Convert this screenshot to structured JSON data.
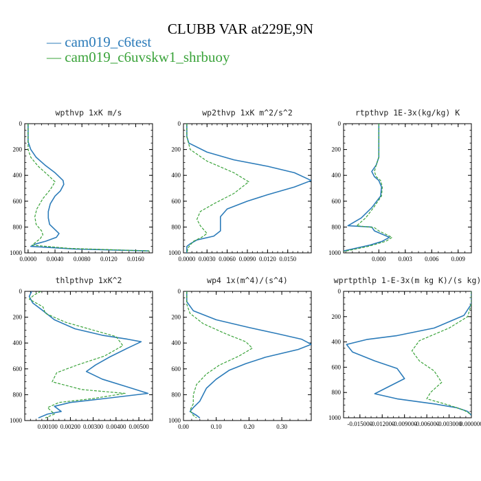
{
  "title": "CLUBB VAR at229E,9N",
  "legend": [
    {
      "label": "— cam019_c6test",
      "color": "#2b7bb9"
    },
    {
      "label": "— cam019_c6uvskw1_shrbuoy",
      "color": "#3aa33a"
    }
  ],
  "chart_data": [
    {
      "type": "line",
      "title": "wpthvp  1xK m/s",
      "ylim": [
        0,
        1000
      ],
      "y_inverted": true,
      "xlim": [
        -0.0005,
        0.0185
      ],
      "xticks": [
        "0.0000",
        "0.0040",
        "0.0080",
        "0.0120",
        "0.0160"
      ],
      "yticks": [
        "0",
        "200",
        "400",
        "600",
        "800",
        "1000"
      ],
      "series": [
        {
          "color": "#2b7bb9",
          "dash": false,
          "points": [
            [
              0.0,
              0
            ],
            [
              0.0,
              100
            ],
            [
              0.0,
              140
            ],
            [
              0.0004,
              200
            ],
            [
              0.0012,
              260
            ],
            [
              0.0025,
              320
            ],
            [
              0.004,
              380
            ],
            [
              0.0052,
              440
            ],
            [
              0.0053,
              470
            ],
            [
              0.0048,
              520
            ],
            [
              0.004,
              560
            ],
            [
              0.0033,
              620
            ],
            [
              0.003,
              680
            ],
            [
              0.003,
              730
            ],
            [
              0.0032,
              780
            ],
            [
              0.004,
              820
            ],
            [
              0.0046,
              850
            ],
            [
              0.0042,
              880
            ],
            [
              0.0026,
              910
            ],
            [
              0.0012,
              930
            ],
            [
              0.0004,
              950
            ],
            [
              0.007,
              970
            ],
            [
              0.018,
              985
            ]
          ]
        },
        {
          "color": "#3aa33a",
          "dash": true,
          "points": [
            [
              0.0,
              0
            ],
            [
              0.0,
              100
            ],
            [
              0.0,
              200
            ],
            [
              0.0004,
              260
            ],
            [
              0.0015,
              330
            ],
            [
              0.003,
              400
            ],
            [
              0.004,
              450
            ],
            [
              0.0033,
              510
            ],
            [
              0.0022,
              580
            ],
            [
              0.0013,
              660
            ],
            [
              0.001,
              720
            ],
            [
              0.0012,
              780
            ],
            [
              0.002,
              830
            ],
            [
              0.0022,
              860
            ],
            [
              0.0018,
              890
            ],
            [
              0.0012,
              915
            ],
            [
              0.0006,
              940
            ],
            [
              0.006,
              965
            ],
            [
              0.018,
              985
            ]
          ]
        }
      ]
    },
    {
      "type": "line",
      "title": "wp2thvp  1xK m^2/s^2",
      "ylim": [
        0,
        1000
      ],
      "y_inverted": true,
      "xlim": [
        -0.0005,
        0.0185
      ],
      "xticks": [
        "0.0000",
        "0.0030",
        "0.0060",
        "0.0090",
        "0.0120",
        "0.0150"
      ],
      "yticks": [
        "0",
        "200",
        "400",
        "600",
        "800",
        "1000"
      ],
      "series": [
        {
          "color": "#2b7bb9",
          "dash": false,
          "points": [
            [
              0.0,
              0
            ],
            [
              0.0,
              100
            ],
            [
              0.0003,
              150
            ],
            [
              0.003,
              220
            ],
            [
              0.007,
              280
            ],
            [
              0.012,
              330
            ],
            [
              0.016,
              380
            ],
            [
              0.0185,
              440
            ],
            [
              0.016,
              490
            ],
            [
              0.012,
              550
            ],
            [
              0.009,
              600
            ],
            [
              0.006,
              660
            ],
            [
              0.005,
              720
            ],
            [
              0.005,
              780
            ],
            [
              0.005,
              830
            ],
            [
              0.004,
              870
            ],
            [
              0.0015,
              900
            ],
            [
              0.0005,
              930
            ],
            [
              0.0,
              950
            ],
            [
              0.0,
              1000
            ]
          ]
        },
        {
          "color": "#3aa33a",
          "dash": true,
          "points": [
            [
              0.0,
              0
            ],
            [
              0.0,
              100
            ],
            [
              0.0005,
              200
            ],
            [
              0.003,
              290
            ],
            [
              0.007,
              380
            ],
            [
              0.0092,
              450
            ],
            [
              0.007,
              540
            ],
            [
              0.004,
              620
            ],
            [
              0.002,
              680
            ],
            [
              0.0015,
              740
            ],
            [
              0.002,
              790
            ],
            [
              0.003,
              850
            ],
            [
              0.0022,
              880
            ],
            [
              0.001,
              910
            ],
            [
              0.0005,
              940
            ],
            [
              0.0002,
              960
            ],
            [
              0.0,
              1000
            ]
          ]
        }
      ]
    },
    {
      "type": "line",
      "title": "rtpthvp  1E-3x(kg/kg) K",
      "ylim": [
        0,
        1000
      ],
      "y_inverted": true,
      "xlim": [
        -0.004,
        0.0105
      ],
      "xticks": [
        "0.000",
        "0.003",
        "0.006",
        "0.009"
      ],
      "yticks": [
        "0",
        "200",
        "400",
        "600",
        "800",
        "1000"
      ],
      "series": [
        {
          "color": "#2b7bb9",
          "dash": false,
          "points": [
            [
              0.0,
              0
            ],
            [
              0.0,
              150
            ],
            [
              0.0,
              260
            ],
            [
              -0.0003,
              320
            ],
            [
              -0.0008,
              370
            ],
            [
              -0.0005,
              410
            ],
            [
              0.0,
              440
            ],
            [
              0.0003,
              490
            ],
            [
              0.0002,
              560
            ],
            [
              -0.0008,
              650
            ],
            [
              -0.002,
              730
            ],
            [
              -0.0035,
              790
            ],
            [
              -0.0008,
              800
            ],
            [
              -0.0005,
              830
            ],
            [
              0.0012,
              880
            ],
            [
              0.0004,
              910
            ],
            [
              -0.001,
              940
            ],
            [
              -0.004,
              985
            ]
          ]
        },
        {
          "color": "#3aa33a",
          "dash": true,
          "points": [
            [
              0.0,
              0
            ],
            [
              0.0,
              150
            ],
            [
              0.0,
              260
            ],
            [
              -0.0003,
              320
            ],
            [
              -0.0005,
              370
            ],
            [
              -0.0003,
              410
            ],
            [
              0.0002,
              440
            ],
            [
              0.0004,
              490
            ],
            [
              0.0003,
              560
            ],
            [
              -0.0006,
              650
            ],
            [
              -0.0015,
              730
            ],
            [
              -0.0025,
              790
            ],
            [
              -0.0005,
              805
            ],
            [
              0.0,
              830
            ],
            [
              0.0015,
              880
            ],
            [
              0.0008,
              910
            ],
            [
              -0.0012,
              950
            ],
            [
              -0.004,
              990
            ]
          ]
        }
      ]
    },
    {
      "type": "line",
      "title": "thlpthvp  1xK^2",
      "ylim": [
        0,
        1000
      ],
      "y_inverted": true,
      "xlim": [
        0.0,
        0.0056
      ],
      "xticks": [
        "0.00100",
        "0.00200",
        "0.00300",
        "0.00400",
        "0.00500"
      ],
      "yticks": [
        "0",
        "200",
        "400",
        "600",
        "800",
        "1000"
      ],
      "series": [
        {
          "color": "#2b7bb9",
          "dash": false,
          "points": [
            [
              0.0003,
              0
            ],
            [
              0.0002,
              40
            ],
            [
              0.00035,
              90
            ],
            [
              0.0008,
              150
            ],
            [
              0.0013,
              220
            ],
            [
              0.0022,
              290
            ],
            [
              0.0034,
              340
            ],
            [
              0.0045,
              370
            ],
            [
              0.0051,
              390
            ],
            [
              0.0045,
              440
            ],
            [
              0.0037,
              510
            ],
            [
              0.0031,
              570
            ],
            [
              0.0027,
              620
            ],
            [
              0.0034,
              680
            ],
            [
              0.0045,
              740
            ],
            [
              0.0054,
              790
            ],
            [
              0.0035,
              830
            ],
            [
              0.002,
              860
            ],
            [
              0.0013,
              890
            ],
            [
              0.0016,
              930
            ],
            [
              0.001,
              950
            ],
            [
              0.0006,
              980
            ]
          ]
        },
        {
          "color": "#3aa33a",
          "dash": true,
          "points": [
            [
              0.0007,
              0
            ],
            [
              0.0004,
              30
            ],
            [
              0.0002,
              60
            ],
            [
              0.0008,
              120
            ],
            [
              0.0009,
              170
            ],
            [
              0.0018,
              240
            ],
            [
              0.003,
              300
            ],
            [
              0.004,
              350
            ],
            [
              0.0043,
              420
            ],
            [
              0.0035,
              500
            ],
            [
              0.0023,
              570
            ],
            [
              0.0014,
              630
            ],
            [
              0.0012,
              700
            ],
            [
              0.0025,
              760
            ],
            [
              0.0044,
              790
            ],
            [
              0.003,
              830
            ],
            [
              0.0015,
              860
            ],
            [
              0.001,
              900
            ],
            [
              0.0013,
              950
            ],
            [
              0.0009,
              980
            ]
          ]
        }
      ]
    },
    {
      "type": "line",
      "title": "wp4  1x(m^4)/(s^4)",
      "ylim": [
        0,
        1000
      ],
      "y_inverted": true,
      "xlim": [
        0.0,
        0.39
      ],
      "xticks": [
        "0.00",
        "0.10",
        "0.20",
        "0.30"
      ],
      "yticks": [
        "0",
        "200",
        "400",
        "600",
        "800",
        "1000"
      ],
      "series": [
        {
          "color": "#2b7bb9",
          "dash": false,
          "points": [
            [
              0.01,
              0
            ],
            [
              0.01,
              80
            ],
            [
              0.03,
              150
            ],
            [
              0.1,
              220
            ],
            [
              0.2,
              280
            ],
            [
              0.29,
              330
            ],
            [
              0.36,
              370
            ],
            [
              0.39,
              410
            ],
            [
              0.35,
              450
            ],
            [
              0.25,
              510
            ],
            [
              0.19,
              560
            ],
            [
              0.14,
              610
            ],
            [
              0.1,
              680
            ],
            [
              0.07,
              750
            ],
            [
              0.06,
              800
            ],
            [
              0.05,
              850
            ],
            [
              0.03,
              900
            ],
            [
              0.02,
              930
            ],
            [
              0.04,
              960
            ],
            [
              0.05,
              980
            ]
          ]
        },
        {
          "color": "#3aa33a",
          "dash": true,
          "points": [
            [
              0.01,
              0
            ],
            [
              0.01,
              100
            ],
            [
              0.02,
              170
            ],
            [
              0.06,
              250
            ],
            [
              0.13,
              330
            ],
            [
              0.19,
              390
            ],
            [
              0.21,
              440
            ],
            [
              0.17,
              500
            ],
            [
              0.11,
              570
            ],
            [
              0.07,
              640
            ],
            [
              0.04,
              720
            ],
            [
              0.03,
              800
            ],
            [
              0.03,
              870
            ],
            [
              0.02,
              920
            ],
            [
              0.03,
              960
            ],
            [
              0.04,
              980
            ]
          ]
        }
      ]
    },
    {
      "type": "line",
      "title": "wprtpthlp  1-E-3x(m kg K)/(s kg)",
      "ylim": [
        0,
        1000
      ],
      "y_inverted": true,
      "xlim": [
        -0.0172,
        0.0
      ],
      "xticks": [
        "-0.015000",
        "-0.012000",
        "-0.009000",
        "-0.006000",
        "-0.003000",
        "0.000000"
      ],
      "yticks": [
        "0",
        "200",
        "400",
        "600",
        "800",
        "1000"
      ],
      "series": [
        {
          "color": "#2b7bb9",
          "dash": false,
          "points": [
            [
              0.0,
              0
            ],
            [
              0.0,
              100
            ],
            [
              -0.001,
              190
            ],
            [
              -0.005,
              290
            ],
            [
              -0.01,
              350
            ],
            [
              -0.014,
              380
            ],
            [
              -0.0168,
              420
            ],
            [
              -0.016,
              480
            ],
            [
              -0.013,
              550
            ],
            [
              -0.01,
              610
            ],
            [
              -0.009,
              690
            ],
            [
              -0.011,
              750
            ],
            [
              -0.013,
              810
            ],
            [
              -0.01,
              850
            ],
            [
              -0.005,
              890
            ],
            [
              -0.002,
              920
            ],
            [
              -0.0005,
              950
            ],
            [
              0.0,
              980
            ]
          ]
        },
        {
          "color": "#3aa33a",
          "dash": true,
          "points": [
            [
              0.0,
              0
            ],
            [
              0.0,
              100
            ],
            [
              -0.0005,
              200
            ],
            [
              -0.003,
              290
            ],
            [
              -0.007,
              390
            ],
            [
              -0.008,
              470
            ],
            [
              -0.007,
              550
            ],
            [
              -0.005,
              630
            ],
            [
              -0.004,
              720
            ],
            [
              -0.0055,
              800
            ],
            [
              -0.006,
              850
            ],
            [
              -0.003,
              900
            ],
            [
              -0.001,
              940
            ],
            [
              0.0,
              975
            ]
          ]
        }
      ]
    }
  ]
}
